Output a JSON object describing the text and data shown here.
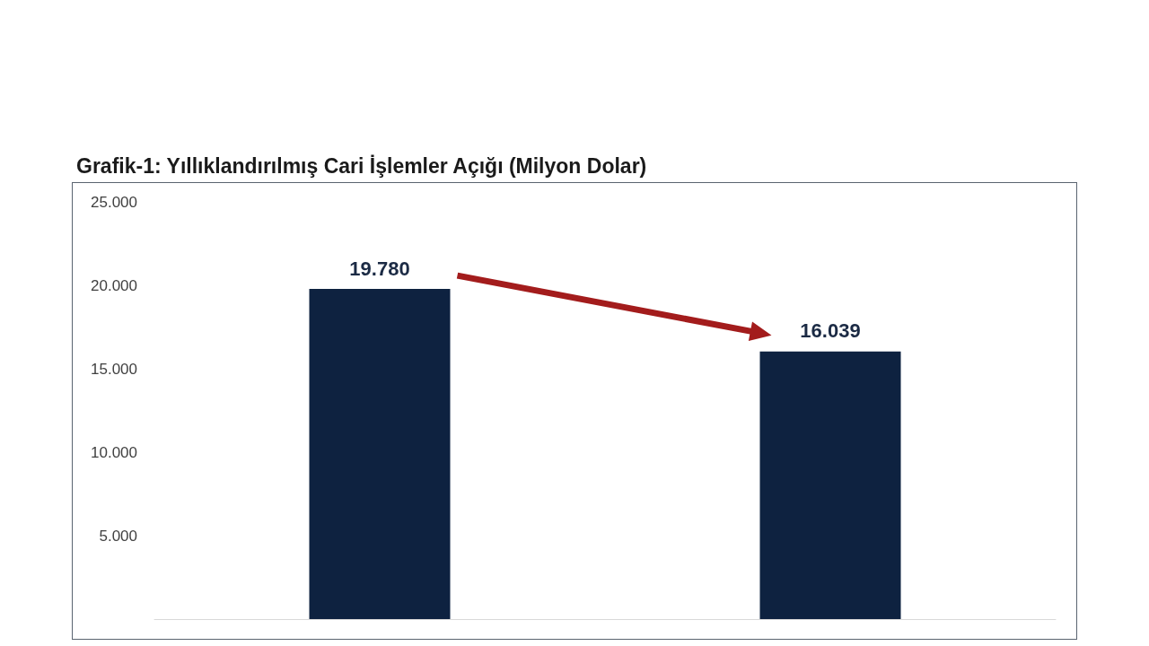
{
  "chart_data": {
    "type": "bar",
    "title": "Grafik-1: Yıllıklandırılmış Cari İşlemler Açığı (Milyon Dolar)",
    "categories": [
      null,
      null
    ],
    "values": [
      19780,
      16039
    ],
    "value_labels": [
      "19.780",
      "16.039"
    ],
    "color": "#0e2240",
    "ylim": [
      0,
      25000
    ],
    "yticks": [
      {
        "value": 5000,
        "label": "5.000"
      },
      {
        "value": 10000,
        "label": "10.000"
      },
      {
        "value": 15000,
        "label": "15.000"
      },
      {
        "value": 20000,
        "label": "20.000"
      },
      {
        "value": 25000,
        "label": "25.000"
      }
    ]
  }
}
